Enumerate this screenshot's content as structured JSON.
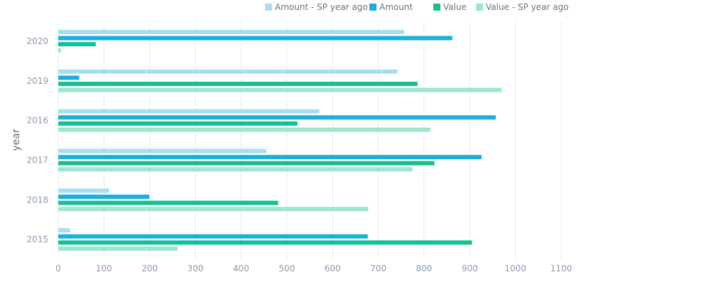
{
  "chart_data": {
    "type": "bar",
    "orientation": "horizontal",
    "title": "",
    "ylabel": "year",
    "xlabel": "",
    "categories": [
      "2020",
      "2019",
      "2016",
      "2017",
      "2018",
      "2015"
    ],
    "xlim": [
      0,
      1100
    ],
    "xticks": [
      0,
      100,
      200,
      300,
      400,
      500,
      600,
      700,
      800,
      900,
      1000,
      1100
    ],
    "grid": true,
    "legend_position": "top-center",
    "series": [
      {
        "name": "Amount - SP year ago",
        "color": "#a6dff0",
        "values": [
          757,
          742,
          571,
          455,
          111,
          26
        ]
      },
      {
        "name": "Amount",
        "color": "#1aafdc",
        "values": [
          862,
          46,
          957,
          926,
          199,
          677
        ]
      },
      {
        "name": "Value",
        "color": "#14c08f",
        "values": [
          82,
          786,
          523,
          823,
          481,
          905
        ]
      },
      {
        "name": "Value - SP year ago",
        "color": "#9be6cf",
        "values": [
          6,
          970,
          814,
          775,
          678,
          261
        ]
      }
    ],
    "colors": {
      "tick_text": "#8a9aae",
      "axis_title": "#666f7d",
      "grid": "#e9e9e9",
      "legend_text": "#6b7280"
    }
  }
}
